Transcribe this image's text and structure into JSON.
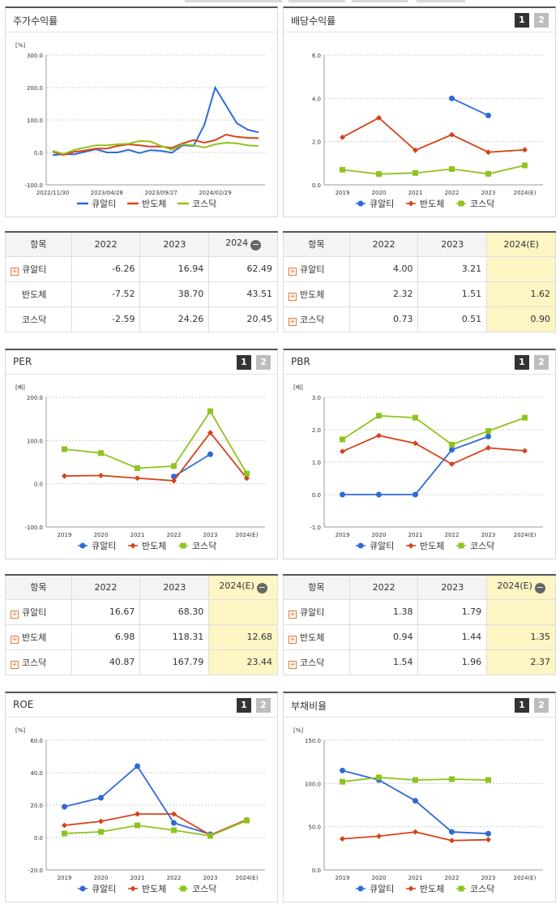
{
  "colors": {
    "kualti": "#2f6ad6",
    "bandoche": "#d6421b",
    "kosdaq": "#8fc31f",
    "estimate_bg": "#fdf5c4"
  },
  "legend": {
    "s1": "큐알티",
    "s2": "반도체",
    "s3": "코스닥"
  },
  "pager": {
    "p1": "1",
    "p2": "2"
  },
  "stock_return": {
    "title": "주가수익률",
    "unit": "[%]",
    "table": {
      "headers": [
        "항목",
        "2022",
        "2023",
        "2024"
      ],
      "rows": [
        {
          "name": "큐알티",
          "v1": "-6.26",
          "v2": "16.94",
          "v3": "62.49"
        },
        {
          "name": "반도체",
          "v1": "-7.52",
          "v2": "38.70",
          "v3": "43.51"
        },
        {
          "name": "코스닥",
          "v1": "-2.59",
          "v2": "24.26",
          "v3": "20.45"
        }
      ]
    }
  },
  "dividend": {
    "title": "배당수익률",
    "table": {
      "headers": [
        "항목",
        "2022",
        "2023",
        "2024(E)"
      ],
      "rows": [
        {
          "name": "큐알티",
          "v1": "4.00",
          "v2": "3.21",
          "v3": ""
        },
        {
          "name": "반도체",
          "v1": "2.32",
          "v2": "1.51",
          "v3": "1.62"
        },
        {
          "name": "코스닥",
          "v1": "0.73",
          "v2": "0.51",
          "v3": "0.90"
        }
      ]
    }
  },
  "per": {
    "title": "PER",
    "unit": "[배]",
    "table": {
      "headers": [
        "항목",
        "2022",
        "2023",
        "2024(E)"
      ],
      "rows": [
        {
          "name": "큐알티",
          "v1": "16.67",
          "v2": "68.30",
          "v3": ""
        },
        {
          "name": "반도체",
          "v1": "6.98",
          "v2": "118.31",
          "v3": "12.68"
        },
        {
          "name": "코스닥",
          "v1": "40.87",
          "v2": "167.79",
          "v3": "23.44"
        }
      ]
    }
  },
  "pbr": {
    "title": "PBR",
    "unit": "[배]",
    "table": {
      "headers": [
        "항목",
        "2022",
        "2023",
        "2024(E)"
      ],
      "rows": [
        {
          "name": "큐알티",
          "v1": "1.38",
          "v2": "1.79",
          "v3": ""
        },
        {
          "name": "반도체",
          "v1": "0.94",
          "v2": "1.44",
          "v3": "1.35"
        },
        {
          "name": "코스닥",
          "v1": "1.54",
          "v2": "1.96",
          "v3": "2.37"
        }
      ]
    }
  },
  "roe": {
    "title": "ROE",
    "unit": "[%]"
  },
  "debt": {
    "title": "부채비율",
    "unit": "[%]"
  },
  "chart_data": [
    {
      "id": "stock_return",
      "type": "line",
      "ylim": [
        -100,
        300
      ],
      "yticks": [
        "300.0",
        "200.0",
        "100.0",
        "0.0",
        "-100.0"
      ],
      "xticks": [
        "2022/11/30",
        "2023/04/28",
        "2023/09/27",
        "2024/02/29"
      ],
      "x": [
        "2022/11/30",
        "2022/12/31",
        "2023/01/31",
        "2023/02/28",
        "2023/03/31",
        "2023/04/28",
        "2023/05/31",
        "2023/06/30",
        "2023/07/31",
        "2023/08/31",
        "2023/09/27",
        "2023/10/31",
        "2023/11/30",
        "2023/12/28",
        "2024/01/31",
        "2024/02/29",
        "2024/03/29",
        "2024/04/30",
        "2024/05/31",
        "2024/06/28"
      ],
      "series": [
        {
          "name": "큐알티",
          "values": [
            -8,
            -5,
            -6,
            2,
            10,
            0,
            0,
            8,
            -2,
            7,
            5,
            -1,
            22,
            20,
            85,
            200,
            145,
            90,
            70,
            62
          ]
        },
        {
          "name": "반도체",
          "values": [
            2,
            -8,
            2,
            6,
            12,
            12,
            20,
            25,
            22,
            18,
            18,
            14,
            28,
            38,
            30,
            38,
            55,
            48,
            45,
            44
          ]
        },
        {
          "name": "코스닥",
          "values": [
            5,
            -5,
            8,
            15,
            22,
            22,
            25,
            27,
            35,
            34,
            20,
            8,
            25,
            22,
            15,
            25,
            30,
            28,
            22,
            20
          ]
        }
      ]
    },
    {
      "id": "dividend",
      "type": "line",
      "ylim": [
        0,
        6
      ],
      "yticks": [
        "6.0",
        "4.0",
        "2.0",
        "0.0"
      ],
      "categories": [
        "2019",
        "2020",
        "2021",
        "2022",
        "2023",
        "2024(E)"
      ],
      "series": [
        {
          "name": "큐알티",
          "values": [
            null,
            null,
            null,
            4.0,
            3.21,
            null
          ]
        },
        {
          "name": "반도체",
          "values": [
            2.2,
            3.1,
            1.6,
            2.32,
            1.51,
            1.62
          ]
        },
        {
          "name": "코스닥",
          "values": [
            0.7,
            0.5,
            0.55,
            0.73,
            0.51,
            0.9
          ]
        }
      ]
    },
    {
      "id": "per",
      "type": "line",
      "ylim": [
        -100,
        200
      ],
      "yticks": [
        "200.0",
        "100.0",
        "0.0",
        "-100.0"
      ],
      "categories": [
        "2019",
        "2020",
        "2021",
        "2022",
        "2023",
        "2024(E)"
      ],
      "series": [
        {
          "name": "큐알티",
          "values": [
            null,
            null,
            null,
            16.67,
            68.3,
            null
          ]
        },
        {
          "name": "반도체",
          "values": [
            18,
            19,
            13,
            6.98,
            118.31,
            12.68
          ]
        },
        {
          "name": "코스닥",
          "values": [
            80,
            71,
            36,
            40.87,
            167.79,
            23.44
          ]
        }
      ]
    },
    {
      "id": "pbr",
      "type": "line",
      "ylim": [
        -1,
        3
      ],
      "yticks": [
        "3.0",
        "2.0",
        "1.0",
        "0.0",
        "-1.0"
      ],
      "categories": [
        "2019",
        "2020",
        "2021",
        "2022",
        "2023",
        "2024(E)"
      ],
      "series": [
        {
          "name": "큐알티",
          "values": [
            0.0,
            0.0,
            0.0,
            1.38,
            1.79,
            null
          ]
        },
        {
          "name": "반도체",
          "values": [
            1.33,
            1.82,
            1.58,
            0.94,
            1.44,
            1.35
          ]
        },
        {
          "name": "코스닥",
          "values": [
            1.7,
            2.43,
            2.37,
            1.54,
            1.96,
            2.37
          ]
        }
      ]
    },
    {
      "id": "roe",
      "type": "line",
      "ylim": [
        -20,
        60
      ],
      "yticks": [
        "60.0",
        "40.0",
        "20.0",
        "0.0",
        "-20.0"
      ],
      "categories": [
        "2019",
        "2020",
        "2021",
        "2022",
        "2023",
        "2024(E)"
      ],
      "series": [
        {
          "name": "큐알티",
          "values": [
            19,
            24.5,
            44,
            9,
            2,
            null
          ]
        },
        {
          "name": "반도체",
          "values": [
            7.5,
            10,
            14.5,
            14.5,
            1.5,
            11
          ]
        },
        {
          "name": "코스닥",
          "values": [
            2.5,
            3.5,
            7.5,
            4.5,
            1,
            10.5
          ]
        }
      ]
    },
    {
      "id": "debt",
      "type": "line",
      "ylim": [
        0,
        150
      ],
      "yticks": [
        "150.0",
        "100.0",
        "50.0",
        "0.0"
      ],
      "categories": [
        "2019",
        "2020",
        "2021",
        "2022",
        "2023",
        "2024(E)"
      ],
      "series": [
        {
          "name": "큐알티",
          "values": [
            115,
            104,
            80,
            44,
            42,
            null
          ]
        },
        {
          "name": "반도체",
          "values": [
            36,
            39,
            44,
            34,
            35,
            null
          ]
        },
        {
          "name": "코스닥",
          "values": [
            102,
            107,
            104,
            105,
            104,
            null
          ]
        }
      ]
    }
  ]
}
